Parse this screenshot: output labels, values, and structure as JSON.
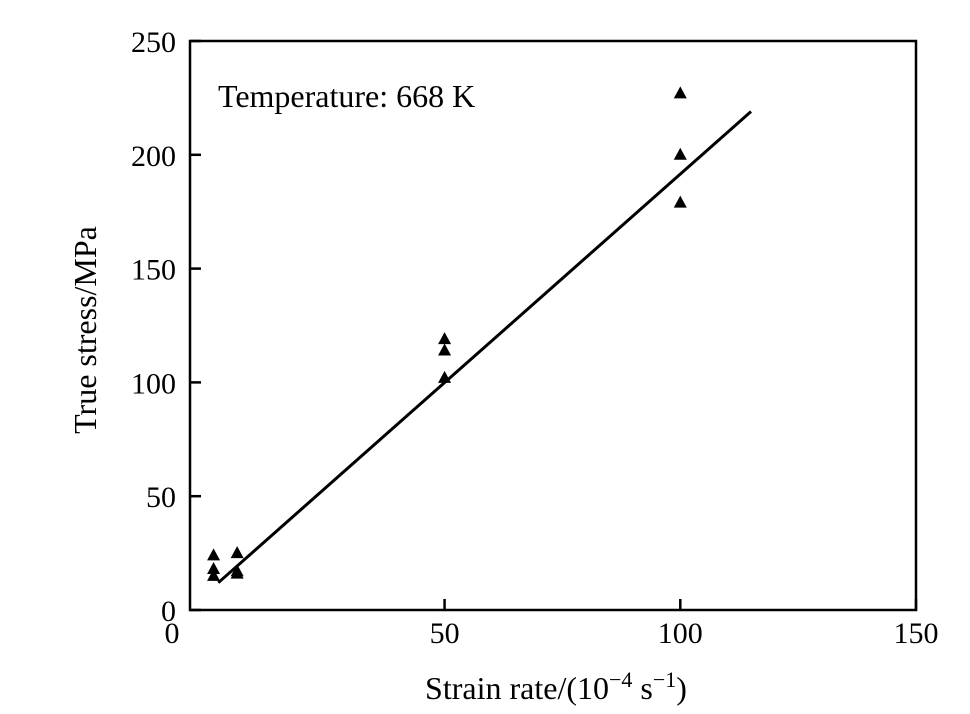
{
  "chart_data": {
    "type": "scatter",
    "annotation": "Temperature: 668 K",
    "xlabel": {
      "text": "Strain rate/(10",
      "sup1": "−4",
      "mid": " s",
      "sup2": "−1",
      "end": ")"
    },
    "ylabel": "True stress/MPa",
    "xlim": [
      -4,
      150
    ],
    "ylim": [
      0,
      250
    ],
    "x_ticks": [
      0,
      50,
      100,
      150
    ],
    "y_ticks": [
      0,
      50,
      100,
      150,
      200,
      250
    ],
    "x_tick_labels": [
      "0",
      "50",
      "100",
      "150"
    ],
    "y_tick_labels": [
      "0",
      "50",
      "100",
      "150",
      "200",
      "250"
    ],
    "grid": false,
    "marker": "triangle",
    "color": "#000000",
    "points": [
      {
        "x": 1,
        "y": 24
      },
      {
        "x": 1,
        "y": 18
      },
      {
        "x": 1,
        "y": 15
      },
      {
        "x": 6,
        "y": 25
      },
      {
        "x": 6,
        "y": 17
      },
      {
        "x": 6,
        "y": 16
      },
      {
        "x": 50,
        "y": 119
      },
      {
        "x": 50,
        "y": 114
      },
      {
        "x": 50,
        "y": 102
      },
      {
        "x": 100,
        "y": 227
      },
      {
        "x": 100,
        "y": 200
      },
      {
        "x": 100,
        "y": 179
      }
    ],
    "fit_line": {
      "x": [
        2,
        115
      ],
      "y": [
        12,
        219
      ]
    }
  }
}
